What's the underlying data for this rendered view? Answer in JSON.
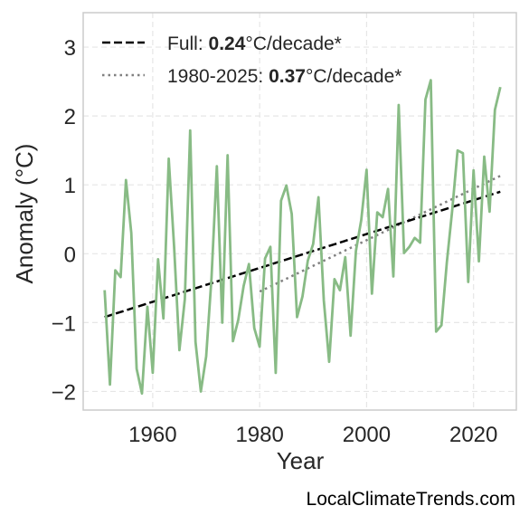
{
  "chart_data": {
    "type": "line",
    "xlabel": "Year",
    "ylabel": "Anomaly (°C)",
    "xlim": [
      1947,
      2028
    ],
    "ylim": [
      -2.27,
      3.5
    ],
    "xticks": [
      1960,
      1980,
      2000,
      2020
    ],
    "yticks": [
      -2,
      -1,
      0,
      1,
      2,
      3
    ],
    "grid": true,
    "legend_position": "top-left",
    "line_color": "#88bb85",
    "x": [
      1951,
      1952,
      1953,
      1954,
      1955,
      1956,
      1957,
      1958,
      1959,
      1960,
      1961,
      1962,
      1963,
      1964,
      1965,
      1966,
      1967,
      1968,
      1969,
      1970,
      1971,
      1972,
      1973,
      1974,
      1975,
      1976,
      1977,
      1978,
      1979,
      1980,
      1981,
      1982,
      1983,
      1984,
      1985,
      1986,
      1987,
      1988,
      1989,
      1990,
      1991,
      1992,
      1993,
      1994,
      1995,
      1996,
      1997,
      1998,
      1999,
      2000,
      2001,
      2002,
      2003,
      2004,
      2005,
      2006,
      2007,
      2008,
      2009,
      2010,
      2011,
      2012,
      2013,
      2014,
      2015,
      2016,
      2017,
      2018,
      2019,
      2020,
      2021,
      2022,
      2023,
      2024,
      2025
    ],
    "values": [
      -0.53,
      -1.9,
      -0.24,
      -0.34,
      1.07,
      0.3,
      -1.67,
      -2.03,
      -0.77,
      -1.73,
      -0.08,
      -0.94,
      1.38,
      0.11,
      -1.4,
      -0.66,
      1.79,
      -1.28,
      -2.0,
      -1.49,
      -0.35,
      1.27,
      -1.0,
      1.43,
      -1.27,
      -0.96,
      -0.47,
      -0.15,
      -1.08,
      -1.35,
      -0.07,
      0.1,
      -1.73,
      0.77,
      0.99,
      0.58,
      -0.92,
      -0.62,
      -0.1,
      0.14,
      0.82,
      -0.68,
      -1.57,
      -0.37,
      -0.53,
      -0.05,
      -1.19,
      0.04,
      0.49,
      1.22,
      -0.58,
      0.6,
      0.53,
      0.94,
      -0.33,
      2.16,
      0.01,
      0.1,
      0.23,
      0.16,
      2.24,
      2.52,
      -1.13,
      -1.04,
      -0.13,
      0.62,
      1.5,
      1.46,
      -0.41,
      1.21,
      -0.11,
      1.41,
      0.61,
      2.09,
      2.42
    ],
    "trend_full": {
      "x": [
        1951,
        2025
      ],
      "y": [
        -0.92,
        0.9
      ]
    },
    "trend_recent": {
      "x": [
        1980,
        2025
      ],
      "y": [
        -0.55,
        1.13
      ]
    },
    "legend": [
      {
        "style": "dashed",
        "color": "#000000",
        "prefix": "Full: ",
        "value": "0.24",
        "suffix": "°C/decade*"
      },
      {
        "style": "dotted",
        "color": "#808080",
        "prefix": "1980-2025: ",
        "value": "0.37",
        "suffix": "°C/decade*"
      }
    ]
  },
  "source_label": "LocalClimateTrends.com"
}
